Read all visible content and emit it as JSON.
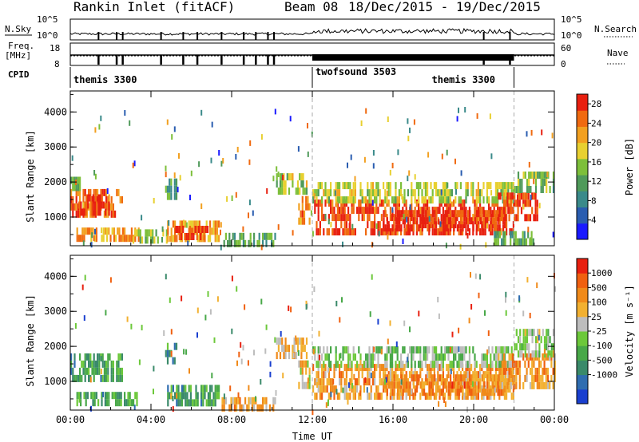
{
  "header": {
    "station": "Rankin Inlet (fitACF)",
    "beam": "Beam 08",
    "dates": "18/Dec/2015 - 19/Dec/2015"
  },
  "strip_labels": {
    "nsky": "N.Sky",
    "freq_top": "Freq.",
    "freq_unit": "[MHz]",
    "cpid": "CPID",
    "nsearch": "N.Search",
    "nave": "Nave",
    "nsky_ticks": [
      "10^5",
      "10^0"
    ],
    "nsearch_ticks": [
      "10^5",
      "10^0"
    ],
    "freq_ticks": [
      "18",
      "8"
    ],
    "nave_ticks": [
      "60",
      "0"
    ]
  },
  "cpid_segments": [
    {
      "label": "themis 3300",
      "start": 0,
      "end": 12
    },
    {
      "label": "twofsound 3503",
      "start": 12,
      "end": 22
    },
    {
      "label": "themis 3300",
      "start": 18,
      "end": 22
    }
  ],
  "chart_data": [
    {
      "type": "heatmap",
      "parameter": "Power",
      "ylabel": "Slant Range [km]",
      "xlabel": "",
      "x_range_hours": [
        0,
        24
      ],
      "xticks": [
        "00:00",
        "04:00",
        "08:00",
        "12:00",
        "16:00",
        "20:00",
        "00:00"
      ],
      "ylim": [
        180,
        4600
      ],
      "yticks": [
        1000,
        2000,
        3000,
        4000
      ],
      "colorbar": {
        "label": "Power [dB]",
        "ticks": [
          4,
          8,
          12,
          16,
          20,
          24,
          28
        ],
        "range": [
          0,
          30
        ],
        "colors": [
          "#1a1aff",
          "#2a5db0",
          "#3a8a8a",
          "#4f9a5a",
          "#7dbf3a",
          "#e8d030",
          "#f2a020",
          "#f06a10",
          "#e82010"
        ]
      },
      "regions": [
        {
          "t0": 0.0,
          "t1": 2.6,
          "r0": 1050,
          "r1": 1800,
          "level": 0.85
        },
        {
          "t0": 0.4,
          "t1": 1.9,
          "r0": 1200,
          "r1": 1650,
          "level": 0.95
        },
        {
          "t0": 0.0,
          "t1": 0.5,
          "r0": 1800,
          "r1": 2150,
          "level": 0.45
        },
        {
          "t0": 0.3,
          "t1": 3.4,
          "r0": 350,
          "r1": 700,
          "level": 0.8
        },
        {
          "t0": 3.0,
          "t1": 4.8,
          "r0": 350,
          "r1": 650,
          "level": 0.55
        },
        {
          "t0": 4.8,
          "t1": 7.4,
          "r0": 300,
          "r1": 900,
          "level": 0.75
        },
        {
          "t0": 5.2,
          "t1": 6.8,
          "r0": 500,
          "r1": 750,
          "level": 0.95
        },
        {
          "t0": 4.7,
          "t1": 5.3,
          "r0": 1500,
          "r1": 2100,
          "level": 0.35
        },
        {
          "t0": 7.5,
          "t1": 10.2,
          "r0": 250,
          "r1": 550,
          "level": 0.4
        },
        {
          "t0": 10.2,
          "t1": 11.7,
          "r0": 1700,
          "r1": 2250,
          "level": 0.55
        },
        {
          "t0": 11.3,
          "t1": 11.9,
          "r0": 800,
          "r1": 1600,
          "level": 0.8
        },
        {
          "t0": 12.0,
          "t1": 22.0,
          "r0": 500,
          "r1": 1500,
          "level": 0.95
        },
        {
          "t0": 12.0,
          "t1": 22.0,
          "r0": 1500,
          "r1": 2000,
          "level": 0.55
        },
        {
          "t0": 15.5,
          "t1": 21.5,
          "r0": 700,
          "r1": 1200,
          "level": 1.0
        },
        {
          "t0": 21.2,
          "t1": 23.2,
          "r0": 900,
          "r1": 1700,
          "level": 0.95
        },
        {
          "t0": 22.0,
          "t1": 24.0,
          "r0": 1700,
          "r1": 2300,
          "level": 0.45
        },
        {
          "t0": 21.0,
          "t1": 23.0,
          "r0": 300,
          "r1": 600,
          "level": 0.4
        }
      ]
    },
    {
      "type": "heatmap",
      "parameter": "Velocity",
      "ylabel": "Slant Range [km]",
      "xlabel": "Time UT",
      "x_range_hours": [
        0,
        24
      ],
      "xticks": [
        "00:00",
        "04:00",
        "08:00",
        "12:00",
        "16:00",
        "20:00",
        "00:00"
      ],
      "ylim": [
        180,
        4600
      ],
      "yticks": [
        1000,
        2000,
        3000,
        4000
      ],
      "colorbar": {
        "label": "Velocity [m s⁻¹]",
        "ticks": [
          "1000",
          "500",
          "100",
          "25",
          "-25",
          "-100",
          "-500",
          "-1000"
        ],
        "colors": [
          "#1a3fcf",
          "#2f6db0",
          "#3a8a6a",
          "#48a848",
          "#6cc83a",
          "#bdbdbd",
          "#f2b030",
          "#f08a1a",
          "#f06010",
          "#e82010"
        ]
      },
      "regions": [
        {
          "t0": 0.0,
          "t1": 2.6,
          "r0": 1050,
          "r1": 1800,
          "level": 0.28
        },
        {
          "t0": 0.3,
          "t1": 3.4,
          "r0": 350,
          "r1": 700,
          "level": 0.35
        },
        {
          "t0": 4.8,
          "t1": 7.4,
          "r0": 300,
          "r1": 900,
          "level": 0.3
        },
        {
          "t0": 4.7,
          "t1": 5.3,
          "r0": 1500,
          "r1": 2100,
          "level": 0.25
        },
        {
          "t0": 7.5,
          "t1": 10.2,
          "r0": 250,
          "r1": 550,
          "level": 0.7
        },
        {
          "t0": 10.2,
          "t1": 11.7,
          "r0": 1700,
          "r1": 2250,
          "level": 0.65
        },
        {
          "t0": 11.3,
          "t1": 11.9,
          "r0": 800,
          "r1": 1600,
          "level": 0.6
        },
        {
          "t0": 12.0,
          "t1": 22.0,
          "r0": 500,
          "r1": 1500,
          "level": 0.72
        },
        {
          "t0": 12.0,
          "t1": 22.0,
          "r0": 1500,
          "r1": 2000,
          "level": 0.45
        },
        {
          "t0": 15.5,
          "t1": 21.5,
          "r0": 700,
          "r1": 1200,
          "level": 0.8
        },
        {
          "t0": 21.2,
          "t1": 24.0,
          "r0": 900,
          "r1": 1800,
          "level": 0.75
        },
        {
          "t0": 22.0,
          "t1": 24.0,
          "r0": 1800,
          "r1": 2500,
          "level": 0.5
        }
      ]
    }
  ]
}
